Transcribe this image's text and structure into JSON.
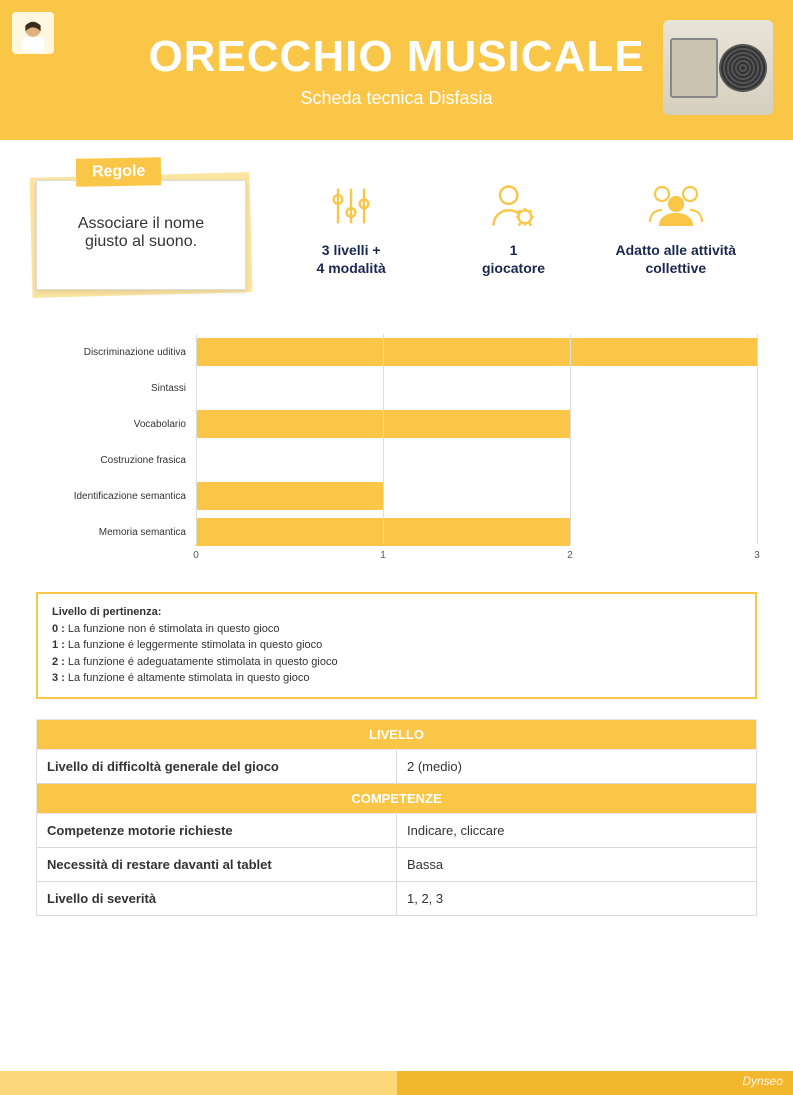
{
  "colors": {
    "accent": "#f9c647",
    "accent_light": "#fdd87a",
    "accent_dark": "#f3b72e",
    "text_dark": "#1a2850",
    "grid": "#dddddd",
    "white": "#ffffff"
  },
  "header": {
    "title": "ORECCHIO MUSICALE",
    "subtitle": "Scheda tecnica Disfasia"
  },
  "rules": {
    "tab_label": "Regole",
    "text": "Associare il nome giusto al suono."
  },
  "stats": [
    {
      "icon": "sliders",
      "label": "3 livelli +\n4 modalità"
    },
    {
      "icon": "user-gear",
      "label": "1\ngiocatore"
    },
    {
      "icon": "group",
      "label": "Adatto alle attività\ncollettive"
    }
  ],
  "chart": {
    "type": "bar-horizontal",
    "xmin": 0,
    "xmax": 3,
    "ticks": [
      0,
      1,
      2,
      3
    ],
    "bar_color": "#f9c647",
    "series": [
      {
        "label": "Discriminazione uditiva",
        "value": 3
      },
      {
        "label": "Sintassi",
        "value": 0
      },
      {
        "label": "Vocabolario",
        "value": 2
      },
      {
        "label": "Costruzione frasica",
        "value": 0
      },
      {
        "label": "Identificazione semantica",
        "value": 1
      },
      {
        "label": "Memoria semantica",
        "value": 2
      }
    ]
  },
  "legend": {
    "title": "Livello di pertinenza:",
    "items": [
      {
        "k": "0 :",
        "v": " La funzione non é stimolata in questo gioco"
      },
      {
        "k": "1 :",
        "v": " La funzione é leggermente stimolata in questo gioco"
      },
      {
        "k": "2 :",
        "v": " La funzione é adeguatamente stimolata in questo gioco"
      },
      {
        "k": "3 :",
        "v": " La funzione é altamente stimolata in questo gioco"
      }
    ]
  },
  "tables": {
    "section1": "LIVELLO",
    "rows1": [
      {
        "k": "Livello di difficoltà generale del gioco",
        "v": "2 (medio)"
      }
    ],
    "section2": "COMPETENZE",
    "rows2": [
      {
        "k": "Competenze motorie richieste",
        "v": "Indicare, cliccare"
      },
      {
        "k": "Necessità di restare davanti al tablet",
        "v": "Bassa"
      },
      {
        "k": "Livello di severità",
        "v": "1, 2, 3"
      }
    ]
  },
  "footer": {
    "brand": "Dynseo"
  }
}
